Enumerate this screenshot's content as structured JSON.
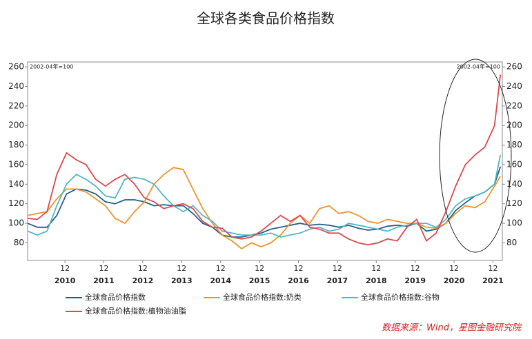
{
  "chart_data": {
    "type": "line",
    "title": "全球各类食品价格指数",
    "annotations": [
      "2002-04年=100",
      "2002-04年=100"
    ],
    "source": "数据来源：Wind，星图金融研究院",
    "x": [
      2010,
      2010.25,
      2010.5,
      2010.75,
      2011,
      2011.25,
      2011.5,
      2011.75,
      2012,
      2012.25,
      2012.5,
      2012.75,
      2013,
      2013.25,
      2013.5,
      2013.75,
      2014,
      2014.25,
      2014.5,
      2014.75,
      2015,
      2015.25,
      2015.5,
      2015.75,
      2016,
      2016.25,
      2016.5,
      2016.75,
      2017,
      2017.25,
      2017.5,
      2017.75,
      2018,
      2018.25,
      2018.5,
      2018.75,
      2019,
      2019.25,
      2019.5,
      2019.75,
      2020,
      2020.25,
      2020.5,
      2020.75,
      2021,
      2021.25,
      2021.5,
      2021.75,
      2022,
      2022.15
    ],
    "xlim": [
      2010,
      2022.2
    ],
    "xticks": [
      {
        "value": 2010.96,
        "label": "12"
      },
      {
        "value": 2011.96,
        "label": "12"
      },
      {
        "value": 2012.96,
        "label": "12"
      },
      {
        "value": 2013.96,
        "label": "12"
      },
      {
        "value": 2014.96,
        "label": "12"
      },
      {
        "value": 2015.96,
        "label": "12"
      },
      {
        "value": 2016.96,
        "label": "12"
      },
      {
        "value": 2017.96,
        "label": "12"
      },
      {
        "value": 2018.96,
        "label": "12"
      },
      {
        "value": 2019.96,
        "label": "12"
      },
      {
        "value": 2020.96,
        "label": "12"
      },
      {
        "value": 2021.96,
        "label": "12"
      }
    ],
    "xticks2": [
      {
        "value": 2010.96,
        "label": "2010"
      },
      {
        "value": 2011.96,
        "label": "2011"
      },
      {
        "value": 2012.96,
        "label": "2012"
      },
      {
        "value": 2013.96,
        "label": "2013"
      },
      {
        "value": 2014.96,
        "label": "2014"
      },
      {
        "value": 2015.96,
        "label": "2015"
      },
      {
        "value": 2016.96,
        "label": "2016"
      },
      {
        "value": 2017.96,
        "label": "2017"
      },
      {
        "value": 2018.96,
        "label": "2018"
      },
      {
        "value": 2019.96,
        "label": "2019"
      },
      {
        "value": 2020.96,
        "label": "2020"
      },
      {
        "value": 2021.96,
        "label": "2021"
      }
    ],
    "ylim": [
      62,
      265
    ],
    "yticks": [
      80,
      100,
      120,
      140,
      160,
      180,
      200,
      220,
      240,
      260
    ],
    "y2lim": [
      62,
      265
    ],
    "y2ticks": [
      80,
      100,
      120,
      140,
      160,
      180,
      200,
      220,
      240,
      260
    ],
    "series": [
      {
        "name": "全球食品价格指数",
        "color": "#1f5f8b",
        "values": [
          100,
          96,
          96,
          108,
          130,
          135,
          134,
          130,
          122,
          120,
          124,
          124,
          122,
          118,
          119,
          118,
          118,
          110,
          100,
          96,
          88,
          86,
          86,
          88,
          90,
          94,
          96,
          98,
          100,
          98,
          99,
          98,
          96,
          98,
          95,
          93,
          94,
          97,
          98,
          97,
          100,
          92,
          94,
          100,
          113,
          121,
          128,
          132,
          140,
          158
        ]
      },
      {
        "name": "全球食品价格指数:奶类",
        "color": "#f0922a",
        "values": [
          108,
          110,
          112,
          125,
          135,
          135,
          132,
          125,
          118,
          105,
          100,
          112,
          122,
          140,
          150,
          157,
          155,
          135,
          115,
          100,
          88,
          82,
          74,
          80,
          76,
          80,
          88,
          100,
          108,
          100,
          115,
          118,
          110,
          112,
          108,
          102,
          100,
          104,
          102,
          100,
          100,
          96,
          95,
          100,
          110,
          118,
          116,
          122,
          138,
          148
        ]
      },
      {
        "name": "全球食品价格指数:谷物",
        "color": "#4fb8c0",
        "values": [
          92,
          88,
          92,
          118,
          140,
          150,
          145,
          138,
          128,
          126,
          145,
          147,
          145,
          140,
          128,
          118,
          112,
          118,
          108,
          102,
          92,
          90,
          88,
          88,
          88,
          90,
          86,
          88,
          90,
          94,
          96,
          92,
          94,
          100,
          98,
          96,
          94,
          92,
          96,
          98,
          100,
          100,
          96,
          104,
          118,
          125,
          128,
          132,
          140,
          170
        ]
      },
      {
        "name": "全球食品价格指数:植物油油脂",
        "color": "#e0474c",
        "values": [
          105,
          104,
          112,
          150,
          172,
          165,
          160,
          145,
          138,
          145,
          150,
          140,
          126,
          122,
          115,
          118,
          120,
          115,
          102,
          96,
          95,
          86,
          84,
          86,
          92,
          100,
          108,
          102,
          108,
          96,
          94,
          90,
          90,
          84,
          80,
          78,
          80,
          84,
          82,
          96,
          104,
          82,
          90,
          112,
          138,
          160,
          170,
          178,
          200,
          252
        ]
      }
    ]
  }
}
